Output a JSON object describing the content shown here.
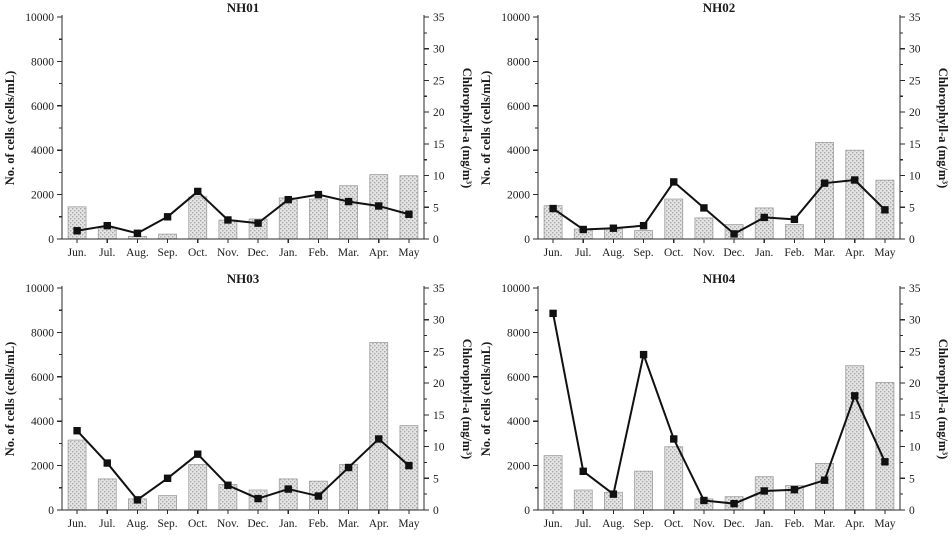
{
  "figure": {
    "layout": "2x2-grid",
    "background": "#ffffff",
    "colors": {
      "bar_fill_base": "#e4e4e4",
      "bar_fill_dot": "#a8a8a8",
      "bar_stroke": "#9a9a9a",
      "line": "#111111",
      "marker": "#111111",
      "axis": "#2a2a2a",
      "text": "#1a1a1a"
    }
  },
  "chart_data": [
    {
      "type": "bar",
      "combo": "bar+line",
      "title": "NH01",
      "categories": [
        "Jun.",
        "Jul.",
        "Aug.",
        "Sep.",
        "Oct.",
        "Nov.",
        "Dec.",
        "Jan.",
        "Feb.",
        "Mar.",
        "Apr.",
        "May"
      ],
      "series": [
        {
          "name": "No. of cells",
          "type": "bar",
          "axis": "left",
          "values": [
            1450,
            500,
            120,
            220,
            1900,
            850,
            900,
            1850,
            1800,
            2400,
            2900,
            2850
          ]
        },
        {
          "name": "Chlorophyll-a",
          "type": "line",
          "axis": "right",
          "values": [
            1.3,
            2.1,
            0.9,
            3.5,
            7.5,
            3.0,
            2.5,
            6.2,
            7.0,
            5.9,
            5.2,
            3.9
          ]
        }
      ],
      "left_axis": {
        "label": "No. of cells (cells/mL)",
        "min": 0,
        "max": 10000,
        "major_tick": 2000,
        "minor_tick": 1000
      },
      "right_axis": {
        "label": "Chlorophyll-a (mg/m³)",
        "min": 0,
        "max": 35,
        "major_tick": 5,
        "minor_tick": 2.5
      },
      "grid": false,
      "legend": "none"
    },
    {
      "type": "bar",
      "combo": "bar+line",
      "title": "NH02",
      "categories": [
        "Jun.",
        "Jul.",
        "Aug.",
        "Sep.",
        "Oct.",
        "Nov.",
        "Dec.",
        "Jan.",
        "Feb.",
        "Mar.",
        "Apr.",
        "May"
      ],
      "series": [
        {
          "name": "No. of cells",
          "type": "bar",
          "axis": "left",
          "values": [
            1500,
            450,
            450,
            380,
            1800,
            950,
            650,
            1400,
            650,
            4350,
            4000,
            2650
          ]
        },
        {
          "name": "Chlorophyll-a",
          "type": "line",
          "axis": "right",
          "values": [
            4.8,
            1.5,
            1.7,
            2.1,
            9.0,
            4.9,
            0.8,
            3.4,
            3.1,
            8.8,
            9.3,
            4.6
          ]
        }
      ],
      "left_axis": {
        "label": "No. of cells (cells/mL)",
        "min": 0,
        "max": 10000,
        "major_tick": 2000,
        "minor_tick": 1000
      },
      "right_axis": {
        "label": "Chlorophyll-a (mg/m³)",
        "min": 0,
        "max": 35,
        "major_tick": 5,
        "minor_tick": 2.5
      },
      "grid": false,
      "legend": "none"
    },
    {
      "type": "bar",
      "combo": "bar+line",
      "title": "NH03",
      "categories": [
        "Jun.",
        "Jul.",
        "Aug.",
        "Sep.",
        "Oct.",
        "Nov.",
        "Dec.",
        "Jan.",
        "Feb.",
        "Mar.",
        "Apr.",
        "May"
      ],
      "series": [
        {
          "name": "No. of cells",
          "type": "bar",
          "axis": "left",
          "values": [
            3150,
            1400,
            500,
            650,
            2050,
            1150,
            900,
            1400,
            1300,
            2050,
            7550,
            3800
          ]
        },
        {
          "name": "Chlorophyll-a",
          "type": "line",
          "axis": "right",
          "values": [
            12.5,
            7.4,
            1.6,
            5.0,
            8.8,
            3.9,
            1.8,
            3.3,
            2.2,
            6.7,
            11.2,
            7.0
          ]
        }
      ],
      "left_axis": {
        "label": "No. of cells (cells/mL)",
        "min": 0,
        "max": 10000,
        "major_tick": 2000,
        "minor_tick": 1000
      },
      "right_axis": {
        "label": "Chlorophyll-a (mg/m³)",
        "min": 0,
        "max": 35,
        "major_tick": 5,
        "minor_tick": 2.5
      },
      "grid": false,
      "legend": "none"
    },
    {
      "type": "bar",
      "combo": "bar+line",
      "title": "NH04",
      "categories": [
        "Jun.",
        "Jul.",
        "Aug.",
        "Sep.",
        "Oct.",
        "Nov.",
        "Dec.",
        "Jan.",
        "Feb.",
        "Mar.",
        "Apr.",
        "May"
      ],
      "series": [
        {
          "name": "No. of cells",
          "type": "bar",
          "axis": "left",
          "values": [
            2450,
            900,
            800,
            1750,
            2850,
            500,
            600,
            1500,
            1100,
            2100,
            6500,
            5750
          ]
        },
        {
          "name": "Chlorophyll-a",
          "type": "line",
          "axis": "right",
          "values": [
            31.0,
            6.1,
            2.5,
            24.5,
            11.2,
            1.5,
            1.0,
            3.0,
            3.2,
            4.7,
            18.0,
            7.6
          ]
        }
      ],
      "left_axis": {
        "label": "No. of cells (cells/mL)",
        "min": 0,
        "max": 10000,
        "major_tick": 2000,
        "minor_tick": 1000
      },
      "right_axis": {
        "label": "Chlorophyll-a (mg/m³)",
        "min": 0,
        "max": 35,
        "major_tick": 5,
        "minor_tick": 2.5
      },
      "grid": false,
      "legend": "none"
    }
  ]
}
